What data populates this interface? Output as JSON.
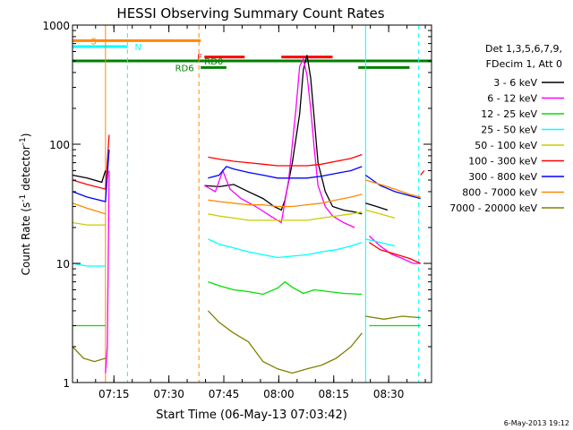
{
  "chart_data": {
    "type": "line",
    "title": "HESSI Observing Summary Count Rates",
    "xlabel": "Start Time (06-May-13 07:03:42)",
    "ylabel_main": "Count Rate (s",
    "ylabel_sup1": "-1",
    "ylabel_mid": " detector",
    "ylabel_sup2": "-1",
    "ylabel_end": ")",
    "x_unit": "minutes after 07:03:42",
    "xlim": [
      0,
      98
    ],
    "yscale": "log",
    "ylim": [
      1,
      1000
    ],
    "y_ticks": [
      {
        "value": 1,
        "label": "1"
      },
      {
        "value": 10,
        "label": "10"
      },
      {
        "value": 100,
        "label": "100"
      },
      {
        "value": 1000,
        "label": "1000"
      }
    ],
    "x_ticks": [
      {
        "value": 11.3,
        "label": "07:15"
      },
      {
        "value": 26.3,
        "label": "07:30"
      },
      {
        "value": 41.3,
        "label": "07:45"
      },
      {
        "value": 56.3,
        "label": "08:00"
      },
      {
        "value": 71.3,
        "label": "08:15"
      },
      {
        "value": 86.3,
        "label": "08:30"
      }
    ],
    "legend_header": [
      "Det 1,3,5,6,7,9,",
      "FDecim 1, Att 0"
    ],
    "legend_position": "right",
    "series": [
      {
        "name": "3 - 6 keV",
        "color": "#000000",
        "segments": [
          [
            [
              0,
              55
            ],
            [
              4,
              52
            ],
            [
              8,
              48
            ],
            [
              9,
              60
            ]
          ],
          [
            [
              36,
              45
            ],
            [
              40,
              44
            ],
            [
              44,
              46
            ],
            [
              48,
              40
            ],
            [
              52,
              35
            ],
            [
              55,
              30
            ],
            [
              57,
              28
            ],
            [
              58,
              34
            ],
            [
              60,
              70
            ],
            [
              62,
              180
            ],
            [
              63,
              420
            ],
            [
              64,
              560
            ],
            [
              65,
              360
            ],
            [
              66,
              160
            ],
            [
              67,
              70
            ],
            [
              69,
              40
            ],
            [
              71,
              30
            ],
            [
              74,
              28
            ],
            [
              77,
              27
            ],
            [
              79,
              26
            ]
          ],
          [
            [
              80,
              32
            ],
            [
              83,
              30
            ],
            [
              86,
              28
            ]
          ]
        ]
      },
      {
        "name": "6 - 12 keV",
        "color": "#ff00ff",
        "segments": [
          [
            [
              9,
              1.2
            ],
            [
              9.5,
              2
            ],
            [
              10,
              60
            ]
          ],
          [
            [
              36,
              45
            ],
            [
              39,
              40
            ],
            [
              41,
              60
            ],
            [
              43,
              42
            ],
            [
              46,
              35
            ],
            [
              50,
              30
            ],
            [
              54,
              25
            ],
            [
              57,
              22
            ],
            [
              59,
              50
            ],
            [
              61,
              200
            ],
            [
              62,
              450
            ],
            [
              63,
              520
            ],
            [
              64,
              380
            ],
            [
              65,
              200
            ],
            [
              66,
              90
            ],
            [
              67,
              45
            ],
            [
              69,
              30
            ],
            [
              71,
              25
            ],
            [
              74,
              22
            ],
            [
              77,
              20
            ]
          ],
          [
            [
              81,
              17
            ],
            [
              84,
              14
            ],
            [
              87,
              12
            ],
            [
              90,
              11
            ],
            [
              93,
              10
            ],
            [
              95,
              10
            ]
          ]
        ]
      },
      {
        "name": "12 - 25 keV",
        "color": "#00e000",
        "segments": [
          [
            [
              0,
              3
            ],
            [
              9,
              3
            ]
          ],
          [
            [
              37,
              7
            ],
            [
              40,
              6.5
            ],
            [
              44,
              6
            ],
            [
              48,
              5.8
            ],
            [
              52,
              5.5
            ],
            [
              56,
              6.2
            ],
            [
              58,
              7
            ],
            [
              60,
              6.3
            ],
            [
              63,
              5.6
            ],
            [
              66,
              6
            ],
            [
              70,
              5.8
            ],
            [
              74,
              5.6
            ],
            [
              79,
              5.5
            ]
          ],
          [
            [
              81,
              3
            ],
            [
              95,
              3
            ]
          ]
        ]
      },
      {
        "name": "25 - 50 keV",
        "color": "#00ffff",
        "segments": [
          [
            [
              0,
              10
            ],
            [
              4,
              9.5
            ],
            [
              9,
              9.5
            ]
          ],
          [
            [
              37,
              16
            ],
            [
              40,
              14.5
            ],
            [
              44,
              13.5
            ],
            [
              48,
              12.5
            ],
            [
              52,
              11.8
            ],
            [
              56,
              11.2
            ],
            [
              60,
              11.5
            ],
            [
              64,
              11.8
            ],
            [
              68,
              12.5
            ],
            [
              72,
              13
            ],
            [
              76,
              14
            ],
            [
              79,
              15
            ]
          ],
          [
            [
              80,
              16
            ],
            [
              84,
              15
            ],
            [
              88,
              14
            ]
          ]
        ]
      },
      {
        "name": "50 - 100 keV",
        "color": "#cccc00",
        "segments": [
          [
            [
              0,
              22
            ],
            [
              4,
              21
            ],
            [
              9,
              21
            ]
          ],
          [
            [
              37,
              26
            ],
            [
              40,
              25
            ],
            [
              44,
              24
            ],
            [
              48,
              23
            ],
            [
              52,
              23
            ],
            [
              56,
              23
            ],
            [
              60,
              23
            ],
            [
              64,
              23
            ],
            [
              68,
              24
            ],
            [
              72,
              25
            ],
            [
              76,
              26
            ],
            [
              79,
              27
            ]
          ],
          [
            [
              80,
              28
            ],
            [
              84,
              26
            ],
            [
              88,
              24
            ]
          ]
        ]
      },
      {
        "name": "100 - 300 keV",
        "color": "#ff0000",
        "segments": [
          [
            [
              0,
              50
            ],
            [
              4,
              46
            ],
            [
              9,
              42
            ],
            [
              10,
              120
            ]
          ],
          [
            [
              37,
              78
            ],
            [
              40,
              75
            ],
            [
              44,
              72
            ],
            [
              48,
              70
            ],
            [
              52,
              68
            ],
            [
              56,
              66
            ],
            [
              60,
              66
            ],
            [
              64,
              66
            ],
            [
              68,
              68
            ],
            [
              72,
              72
            ],
            [
              76,
              76
            ],
            [
              79,
              82
            ]
          ],
          [
            [
              81,
              15
            ],
            [
              84,
              13
            ],
            [
              88,
              12
            ],
            [
              92,
              11
            ],
            [
              95,
              10
            ]
          ],
          [
            [
              95,
              55
            ],
            [
              96,
              60
            ]
          ]
        ]
      },
      {
        "name": "300 - 800 keV",
        "color": "#0000ff",
        "segments": [
          [
            [
              0,
              40
            ],
            [
              4,
              36
            ],
            [
              9,
              33
            ],
            [
              10,
              90
            ]
          ],
          [
            [
              37,
              52
            ],
            [
              40,
              55
            ],
            [
              42,
              65
            ],
            [
              44,
              62
            ],
            [
              48,
              58
            ],
            [
              52,
              55
            ],
            [
              56,
              52
            ],
            [
              60,
              52
            ],
            [
              64,
              52
            ],
            [
              68,
              54
            ],
            [
              72,
              57
            ],
            [
              76,
              60
            ],
            [
              79,
              65
            ]
          ],
          [
            [
              80,
              55
            ],
            [
              84,
              45
            ],
            [
              88,
              40
            ],
            [
              92,
              37
            ],
            [
              95,
              35
            ]
          ]
        ]
      },
      {
        "name": "800 - 7000 keV",
        "color": "#ff8800",
        "segments": [
          [
            [
              0,
              32
            ],
            [
              4,
              29
            ],
            [
              9,
              26
            ]
          ],
          [
            [
              37,
              34
            ],
            [
              40,
              33
            ],
            [
              44,
              32
            ],
            [
              48,
              31
            ],
            [
              52,
              31
            ],
            [
              56,
              30
            ],
            [
              60,
              30
            ],
            [
              64,
              31
            ],
            [
              68,
              32
            ],
            [
              72,
              34
            ],
            [
              76,
              36
            ],
            [
              79,
              38
            ]
          ],
          [
            [
              80,
              50
            ],
            [
              84,
              46
            ],
            [
              88,
              42
            ],
            [
              92,
              38
            ],
            [
              95,
              36
            ]
          ]
        ]
      },
      {
        "name": "7000 - 20000 keV",
        "color": "#808000",
        "segments": [
          [
            [
              0,
              2
            ],
            [
              3,
              1.6
            ],
            [
              6,
              1.5
            ],
            [
              9,
              1.6
            ]
          ],
          [
            [
              37,
              4
            ],
            [
              40,
              3.2
            ],
            [
              44,
              2.6
            ],
            [
              48,
              2.2
            ],
            [
              52,
              1.5
            ],
            [
              56,
              1.3
            ],
            [
              60,
              1.2
            ],
            [
              64,
              1.3
            ],
            [
              68,
              1.4
            ],
            [
              72,
              1.6
            ],
            [
              76,
              2
            ],
            [
              79,
              2.6
            ]
          ],
          [
            [
              80,
              3.6
            ],
            [
              85,
              3.4
            ],
            [
              90,
              3.6
            ],
            [
              95,
              3.5
            ]
          ]
        ]
      }
    ],
    "markers": [
      {
        "label": "S",
        "color": "#ff8800",
        "y": 740,
        "x0": 0,
        "x1": 35,
        "label_x": 5
      },
      {
        "label": "N",
        "color": "#00ffff",
        "y": 660,
        "x0": 0,
        "x1": 15,
        "label_x": 17
      },
      {
        "label": "F",
        "color": "#ff0000",
        "y": 540,
        "x0": 36,
        "x1": 47,
        "label_x": 34
      },
      {
        "label": "",
        "color": "#ff0000",
        "y": 540,
        "x0": 57,
        "x1": 71,
        "label_x": 57
      },
      {
        "label": "RD0",
        "color": "#008000",
        "y": 500,
        "x0": 0,
        "x1": 98,
        "label_x": 36
      },
      {
        "label": "RD6",
        "color": "#008000",
        "y": 440,
        "x0": 35,
        "x1": 42,
        "label_x": 28
      },
      {
        "label": "",
        "color": "#008000",
        "y": 440,
        "x0": 78,
        "x1": 92,
        "label_x": 78
      }
    ],
    "vlines": [
      {
        "x": 9,
        "color": "#ff8800",
        "style": "solid"
      },
      {
        "x": 15,
        "color": "#00ffff",
        "style": "dashed"
      },
      {
        "x": 34.5,
        "color": "#ff8800",
        "style": "dashed"
      },
      {
        "x": 80,
        "color": "#00ffff",
        "style": "solid"
      },
      {
        "x": 94.5,
        "color": "#00ffff",
        "style": "dashed"
      }
    ],
    "timestamp": "6-May-2013 19:12"
  }
}
